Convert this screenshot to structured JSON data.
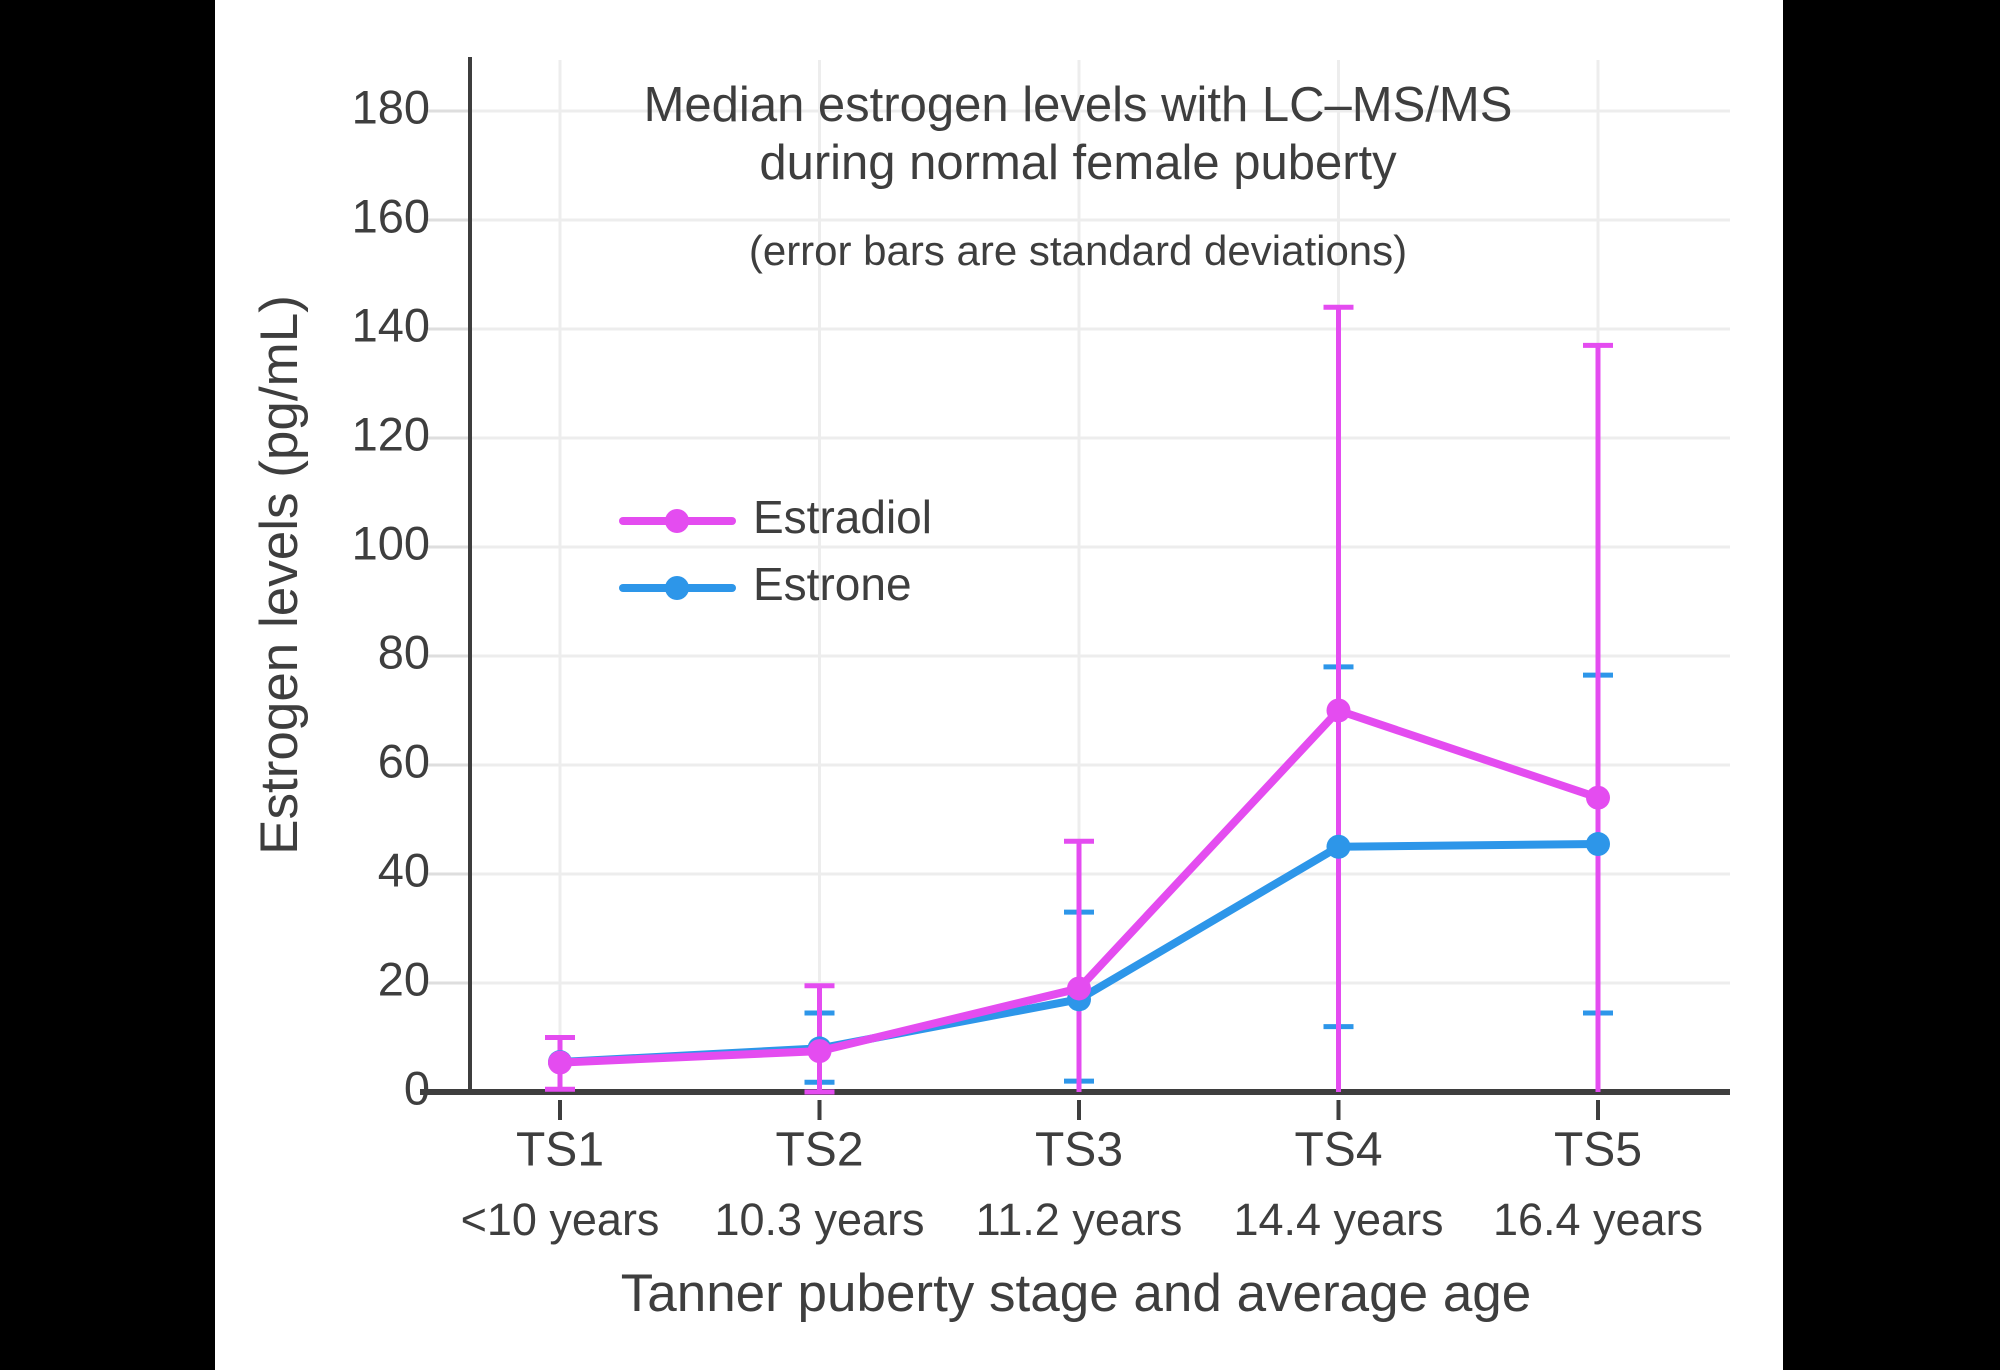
{
  "window": {
    "background_color": "#000000",
    "panel_color": "#FFFFFF",
    "text_color": "#3E3E3E",
    "grid_color": "#EDEDED",
    "axis_color": "#3E3E3E"
  },
  "legend": {
    "items": [
      {
        "label": "Estradiol",
        "color": "#E44CF0"
      },
      {
        "label": "Estrone",
        "color": "#2D96E9"
      }
    ]
  },
  "chart_data": {
    "type": "line",
    "title": "Median estrogen levels with LC–MS/MS during normal female puberty",
    "title_lines": [
      "Median estrogen levels with LC–MS/MS",
      "during normal female puberty"
    ],
    "subtitle": "(error bars are standard deviations)",
    "xlabel": "Tanner puberty stage and average age",
    "ylabel": "Estrogen levels (pg/mL)",
    "categories": [
      "TS1",
      "TS2",
      "TS3",
      "TS4",
      "TS5"
    ],
    "category_ages": [
      "<10 years",
      "10.3 years",
      "11.2 years",
      "14.4 years",
      "16.4 years"
    ],
    "yticks": [
      0,
      20,
      40,
      60,
      80,
      100,
      120,
      140,
      160,
      180
    ],
    "ylim": [
      0,
      190
    ],
    "grid": true,
    "legend_position": "inside-upper-left",
    "units": "pg/mL",
    "series": [
      {
        "name": "Estrone",
        "color": "#2D96E9",
        "values": [
          5.5,
          8,
          17,
          45,
          45.5
        ],
        "error_bars": [
          null,
          {
            "low": 1.8,
            "high": 14.5
          },
          {
            "low": 2,
            "high": 33
          },
          {
            "low": 12,
            "high": 78
          },
          {
            "low": 14.5,
            "high": 76.5
          }
        ]
      },
      {
        "name": "Estradiol",
        "color": "#E44CF0",
        "values": [
          5.4,
          7.5,
          19,
          70,
          54
        ],
        "error_bars": [
          {
            "low": 0.5,
            "high": 10
          },
          {
            "low": 0,
            "high": 19.5
          },
          {
            "low": 0,
            "high": 46,
            "low_cap": false
          },
          {
            "low": 0,
            "high": 144,
            "low_cap": false
          },
          {
            "low": 0,
            "high": 137,
            "low_cap": false
          }
        ]
      }
    ]
  }
}
